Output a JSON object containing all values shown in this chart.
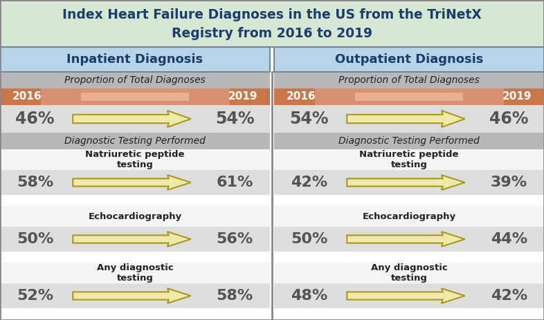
{
  "title_line1": "Index Heart Failure Diagnoses in the US from the TriNetX",
  "title_line2": "Registry from 2016 to 2019",
  "title_bg": "#d6e8d4",
  "title_color": "#1a3d6e",
  "left_header": "Inpatient Diagnosis",
  "right_header": "Outpatient Diagnosis",
  "header_bg": "#b8d4e8",
  "header_text_color": "#1a3d6e",
  "section1_label": "Proportion of Total Diagnoses",
  "section2_label": "Diagnostic Testing Performed",
  "section_bg": "#b8b8b8",
  "year_bar_left": "#c8764a",
  "year_bar_center": "#d99070",
  "year_left": "2016",
  "year_right": "2019",
  "arrow_body_color": "#f0eaaa",
  "arrow_border_color": "#a89820",
  "row_bg": "#dedede",
  "white_bg": "#f5f5f5",
  "value_color": "#555555",
  "inpatient": {
    "proportion": {
      "from": "46%",
      "to": "54%"
    },
    "natriuretic": {
      "label": "Natriuretic peptide\ntesting",
      "from": "58%",
      "to": "61%"
    },
    "echo": {
      "label": "Echocardiography",
      "from": "50%",
      "to": "56%"
    },
    "any": {
      "label": "Any diagnostic\ntesting",
      "from": "52%",
      "to": "58%"
    }
  },
  "outpatient": {
    "proportion": {
      "from": "54%",
      "to": "46%"
    },
    "natriuretic": {
      "label": "Natriuretic peptide\ntesting",
      "from": "42%",
      "to": "39%"
    },
    "echo": {
      "label": "Echocardiography",
      "from": "50%",
      "to": "44%"
    },
    "any": {
      "label": "Any diagnostic\ntesting",
      "from": "48%",
      "to": "42%"
    }
  }
}
